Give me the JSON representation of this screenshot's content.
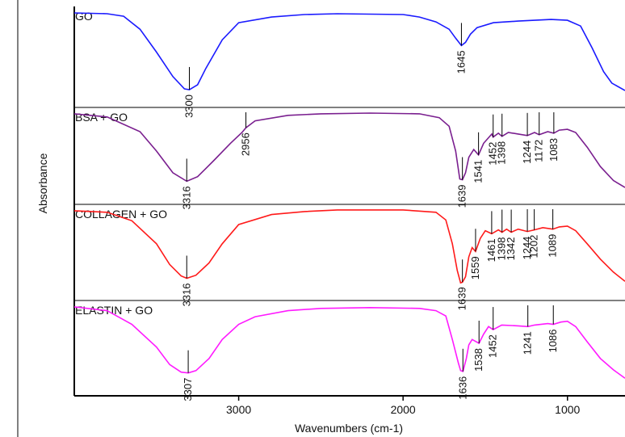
{
  "chart_data": {
    "type": "line",
    "xlabel": "Wavenumbers (cm-1)",
    "ylabel": "Absorbance",
    "x_reversed": true,
    "xlim": [
      4000,
      650
    ],
    "x_ticks": [
      3000,
      2000,
      1000
    ],
    "x_tick_labels": [
      "3000",
      "2000",
      "1000"
    ],
    "layout": "stacked-panels",
    "series": [
      {
        "name": "GO",
        "color": "#1a1aff",
        "points": [
          [
            4000,
            0.98
          ],
          [
            3800,
            0.97
          ],
          [
            3700,
            0.94
          ],
          [
            3600,
            0.78
          ],
          [
            3500,
            0.5
          ],
          [
            3400,
            0.2
          ],
          [
            3330,
            0.05
          ],
          [
            3300,
            0.04
          ],
          [
            3250,
            0.1
          ],
          [
            3200,
            0.3
          ],
          [
            3100,
            0.65
          ],
          [
            3000,
            0.86
          ],
          [
            2800,
            0.93
          ],
          [
            2600,
            0.96
          ],
          [
            2400,
            0.97
          ],
          [
            2000,
            0.96
          ],
          [
            1900,
            0.93
          ],
          [
            1800,
            0.87
          ],
          [
            1720,
            0.78
          ],
          [
            1680,
            0.67
          ],
          [
            1645,
            0.58
          ],
          [
            1620,
            0.62
          ],
          [
            1590,
            0.72
          ],
          [
            1550,
            0.8
          ],
          [
            1450,
            0.86
          ],
          [
            1300,
            0.88
          ],
          [
            1200,
            0.89
          ],
          [
            1100,
            0.9
          ],
          [
            1000,
            0.89
          ],
          [
            920,
            0.82
          ],
          [
            850,
            0.55
          ],
          [
            780,
            0.26
          ],
          [
            730,
            0.12
          ],
          [
            650,
            0.03
          ]
        ],
        "peaks": [
          {
            "wavenumber": 3300,
            "label": "3300"
          },
          {
            "wavenumber": 1645,
            "label": "1645"
          }
        ]
      },
      {
        "name": "BSA + GO",
        "color": "#7a1f8f",
        "points": [
          [
            4000,
            0.98
          ],
          [
            3800,
            0.94
          ],
          [
            3600,
            0.75
          ],
          [
            3500,
            0.5
          ],
          [
            3400,
            0.22
          ],
          [
            3316,
            0.11
          ],
          [
            3250,
            0.17
          ],
          [
            3150,
            0.38
          ],
          [
            3050,
            0.6
          ],
          [
            2980,
            0.74
          ],
          [
            2956,
            0.8
          ],
          [
            2900,
            0.89
          ],
          [
            2700,
            0.96
          ],
          [
            2500,
            0.98
          ],
          [
            2200,
            0.99
          ],
          [
            1900,
            0.98
          ],
          [
            1780,
            0.93
          ],
          [
            1720,
            0.82
          ],
          [
            1680,
            0.5
          ],
          [
            1655,
            0.14
          ],
          [
            1639,
            0.13
          ],
          [
            1620,
            0.22
          ],
          [
            1600,
            0.42
          ],
          [
            1570,
            0.52
          ],
          [
            1541,
            0.45
          ],
          [
            1510,
            0.6
          ],
          [
            1460,
            0.72
          ],
          [
            1452,
            0.68
          ],
          [
            1420,
            0.73
          ],
          [
            1398,
            0.69
          ],
          [
            1360,
            0.74
          ],
          [
            1300,
            0.72
          ],
          [
            1244,
            0.7
          ],
          [
            1200,
            0.74
          ],
          [
            1172,
            0.71
          ],
          [
            1120,
            0.75
          ],
          [
            1083,
            0.73
          ],
          [
            1050,
            0.77
          ],
          [
            1000,
            0.78
          ],
          [
            950,
            0.74
          ],
          [
            880,
            0.55
          ],
          [
            800,
            0.3
          ],
          [
            720,
            0.12
          ],
          [
            650,
            0.03
          ]
        ],
        "peaks": [
          {
            "wavenumber": 3316,
            "label": "3316"
          },
          {
            "wavenumber": 2956,
            "label": "2956"
          },
          {
            "wavenumber": 1639,
            "label": "1639"
          },
          {
            "wavenumber": 1541,
            "label": "1541"
          },
          {
            "wavenumber": 1452,
            "label": "1452"
          },
          {
            "wavenumber": 1398,
            "label": "1398"
          },
          {
            "wavenumber": 1244,
            "label": "1244"
          },
          {
            "wavenumber": 1172,
            "label": "1172"
          },
          {
            "wavenumber": 1083,
            "label": "1083"
          }
        ]
      },
      {
        "name": "COLLAGEN + GO",
        "color": "#ff1a1a",
        "points": [
          [
            4000,
            0.98
          ],
          [
            3800,
            0.96
          ],
          [
            3650,
            0.85
          ],
          [
            3500,
            0.55
          ],
          [
            3420,
            0.28
          ],
          [
            3350,
            0.13
          ],
          [
            3316,
            0.1
          ],
          [
            3260,
            0.14
          ],
          [
            3180,
            0.3
          ],
          [
            3100,
            0.55
          ],
          [
            3000,
            0.8
          ],
          [
            2800,
            0.93
          ],
          [
            2600,
            0.97
          ],
          [
            2400,
            0.99
          ],
          [
            2000,
            0.99
          ],
          [
            1800,
            0.96
          ],
          [
            1740,
            0.86
          ],
          [
            1700,
            0.55
          ],
          [
            1670,
            0.2
          ],
          [
            1650,
            0.04
          ],
          [
            1639,
            0.05
          ],
          [
            1620,
            0.12
          ],
          [
            1600,
            0.38
          ],
          [
            1580,
            0.5
          ],
          [
            1559,
            0.45
          ],
          [
            1530,
            0.62
          ],
          [
            1500,
            0.72
          ],
          [
            1461,
            0.68
          ],
          [
            1420,
            0.73
          ],
          [
            1398,
            0.7
          ],
          [
            1370,
            0.74
          ],
          [
            1342,
            0.7
          ],
          [
            1300,
            0.74
          ],
          [
            1244,
            0.71
          ],
          [
            1202,
            0.73
          ],
          [
            1150,
            0.76
          ],
          [
            1089,
            0.74
          ],
          [
            1050,
            0.77
          ],
          [
            1000,
            0.78
          ],
          [
            950,
            0.72
          ],
          [
            880,
            0.55
          ],
          [
            800,
            0.35
          ],
          [
            720,
            0.18
          ],
          [
            650,
            0.06
          ]
        ],
        "peaks": [
          {
            "wavenumber": 3316,
            "label": "3316"
          },
          {
            "wavenumber": 1639,
            "label": "1639"
          },
          {
            "wavenumber": 1559,
            "label": "1559"
          },
          {
            "wavenumber": 1461,
            "label": "1461"
          },
          {
            "wavenumber": 1398,
            "label": "1398"
          },
          {
            "wavenumber": 1342,
            "label": "1342"
          },
          {
            "wavenumber": 1244,
            "label": "1244"
          },
          {
            "wavenumber": 1202,
            "label": "1202"
          },
          {
            "wavenumber": 1089,
            "label": "1089"
          }
        ]
      },
      {
        "name": "ELASTIN   + GO",
        "color": "#ff1aff",
        "points": [
          [
            4000,
            0.98
          ],
          [
            3800,
            0.93
          ],
          [
            3650,
            0.75
          ],
          [
            3500,
            0.45
          ],
          [
            3420,
            0.22
          ],
          [
            3350,
            0.12
          ],
          [
            3307,
            0.11
          ],
          [
            3260,
            0.14
          ],
          [
            3180,
            0.3
          ],
          [
            3100,
            0.55
          ],
          [
            3000,
            0.75
          ],
          [
            2900,
            0.85
          ],
          [
            2700,
            0.93
          ],
          [
            2500,
            0.96
          ],
          [
            2200,
            0.97
          ],
          [
            1900,
            0.96
          ],
          [
            1800,
            0.93
          ],
          [
            1740,
            0.86
          ],
          [
            1700,
            0.55
          ],
          [
            1665,
            0.25
          ],
          [
            1650,
            0.14
          ],
          [
            1636,
            0.13
          ],
          [
            1615,
            0.3
          ],
          [
            1600,
            0.48
          ],
          [
            1580,
            0.55
          ],
          [
            1538,
            0.5
          ],
          [
            1510,
            0.62
          ],
          [
            1480,
            0.72
          ],
          [
            1452,
            0.68
          ],
          [
            1400,
            0.74
          ],
          [
            1300,
            0.73
          ],
          [
            1241,
            0.72
          ],
          [
            1200,
            0.74
          ],
          [
            1120,
            0.76
          ],
          [
            1086,
            0.75
          ],
          [
            1040,
            0.78
          ],
          [
            1000,
            0.79
          ],
          [
            950,
            0.72
          ],
          [
            880,
            0.52
          ],
          [
            800,
            0.3
          ],
          [
            720,
            0.15
          ],
          [
            650,
            0.04
          ]
        ],
        "peaks": [
          {
            "wavenumber": 3307,
            "label": "3307"
          },
          {
            "wavenumber": 1636,
            "label": "1636"
          },
          {
            "wavenumber": 1538,
            "label": "1538"
          },
          {
            "wavenumber": 1452,
            "label": "1452"
          },
          {
            "wavenumber": 1241,
            "label": "1241"
          },
          {
            "wavenumber": 1086,
            "label": "1086"
          }
        ]
      }
    ]
  }
}
